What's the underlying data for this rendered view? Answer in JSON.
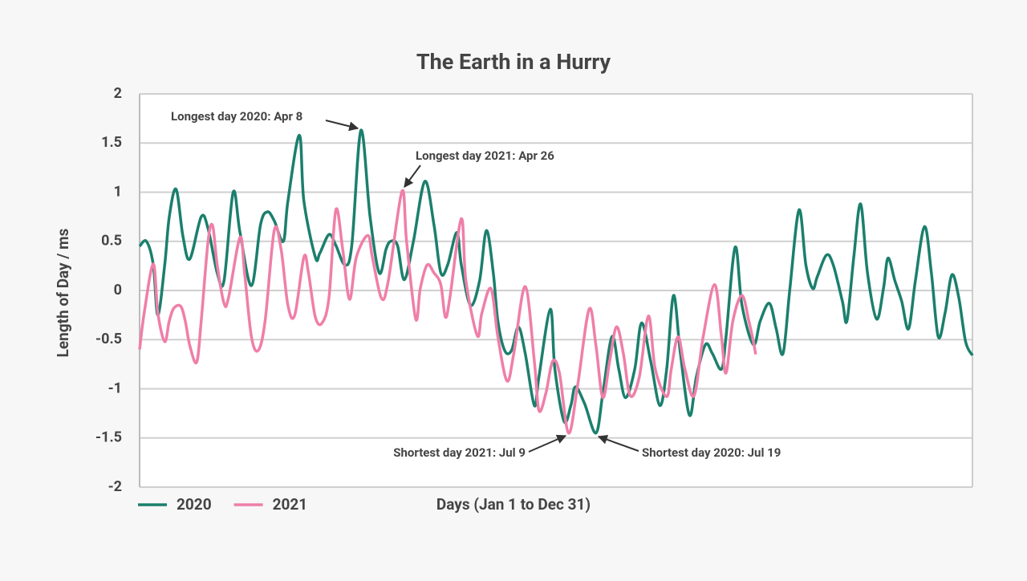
{
  "chart_data": {
    "type": "line",
    "title": "The Earth in a Hurry",
    "x_label": "Days (Jan 1 to Dec 31)",
    "y_label": "Length of Day / ms",
    "xlim": [
      1,
      366
    ],
    "ylim": [
      -2,
      2
    ],
    "yticks": [
      2,
      1.5,
      1,
      0.5,
      0,
      -0.5,
      -1,
      -1.5,
      -2
    ],
    "grid": true,
    "annotations": [
      "Longest day 2020: Apr 8",
      "Longest day 2021: Apr 26",
      "Shortest day 2021: Jul 9",
      "Shortest day 2020: Jul 19"
    ],
    "series": [
      {
        "name": "2020",
        "color": "#1b7f6d",
        "x": [
          1,
          4,
          7,
          9,
          12,
          14,
          17,
          20,
          23,
          28,
          31,
          35,
          38,
          42,
          45,
          50,
          54,
          57,
          60,
          64,
          66,
          71,
          73,
          78,
          80,
          84,
          87,
          91,
          94,
          98,
          102,
          106,
          109,
          111,
          114,
          117,
          121,
          126,
          130,
          133,
          136,
          140,
          142,
          146,
          150,
          153,
          156,
          158,
          161,
          164,
          167,
          170,
          174,
          176,
          181,
          183,
          187,
          190,
          192,
          196,
          201,
          204,
          208,
          211,
          214,
          218,
          221,
          225,
          229,
          232,
          235,
          238,
          242,
          245,
          249,
          252,
          256,
          258,
          262,
          265,
          270,
          273,
          277,
          280,
          283,
          286,
          290,
          293,
          296,
          298,
          302,
          305,
          309,
          311,
          314,
          317,
          320,
          324,
          327,
          329,
          332,
          335,
          338,
          341,
          345,
          348,
          351,
          354,
          357,
          360,
          363,
          366
        ],
        "values": [
          0.45,
          0.5,
          0.26,
          -0.25,
          0.26,
          0.75,
          1.03,
          0.55,
          0.32,
          0.75,
          0.63,
          0.18,
          0.1,
          1.0,
          0.59,
          0.05,
          0.67,
          0.8,
          0.71,
          0.5,
          0.91,
          1.58,
          0.91,
          0.34,
          0.38,
          0.57,
          0.46,
          0.26,
          0.46,
          1.63,
          0.75,
          0.18,
          0.42,
          0.5,
          0.46,
          0.11,
          0.5,
          1.11,
          0.67,
          0.18,
          0.26,
          0.59,
          0.26,
          -0.15,
          0.1,
          0.61,
          0.18,
          -0.31,
          -0.61,
          -0.61,
          -0.37,
          -0.64,
          -1.17,
          -0.88,
          -0.19,
          -0.8,
          -1.33,
          -1.17,
          -0.98,
          -1.15,
          -1.45,
          -1.05,
          -0.47,
          -0.8,
          -1.09,
          -0.8,
          -0.33,
          -0.72,
          -1.17,
          -0.8,
          -0.05,
          -0.64,
          -1.27,
          -0.88,
          -0.55,
          -0.64,
          -0.8,
          -0.47,
          0.44,
          -0.15,
          -0.55,
          -0.31,
          -0.13,
          -0.39,
          -0.64,
          0.02,
          0.82,
          0.26,
          0.02,
          0.14,
          0.36,
          0.26,
          -0.11,
          -0.31,
          0.34,
          0.88,
          0.18,
          -0.29,
          0.02,
          0.33,
          0.1,
          -0.11,
          -0.39,
          0.1,
          0.65,
          0.18,
          -0.47,
          -0.23,
          0.16,
          -0.07,
          -0.52,
          -0.66
        ]
      },
      {
        "name": "2021",
        "color": "#ef7fa8",
        "x": [
          1,
          3,
          7,
          9,
          12,
          14,
          16,
          19,
          21,
          23,
          26,
          28,
          31,
          33,
          35,
          38,
          40,
          45,
          47,
          50,
          53,
          56,
          60,
          63,
          66,
          69,
          73,
          75,
          78,
          81,
          84,
          87,
          90,
          93,
          96,
          101,
          103,
          107,
          110,
          116,
          118,
          122,
          124,
          127,
          130,
          133,
          135,
          137,
          142,
          144,
          149,
          151,
          155,
          158,
          162,
          165,
          170,
          174,
          176,
          179,
          182,
          185,
          189,
          193,
          198,
          201,
          204,
          207,
          210,
          213,
          216,
          220,
          224,
          227,
          232,
          234,
          237,
          240,
          244,
          248,
          253,
          256,
          258,
          261,
          265,
          268,
          270,
          271
        ],
        "values": [
          -0.6,
          -0.23,
          0.27,
          -0.23,
          -0.52,
          -0.31,
          -0.18,
          -0.16,
          -0.31,
          -0.56,
          -0.73,
          -0.31,
          0.5,
          0.66,
          0.26,
          -0.13,
          -0.07,
          0.54,
          0.18,
          -0.47,
          -0.61,
          -0.31,
          0.61,
          0.42,
          -0.15,
          -0.25,
          0.34,
          0.18,
          -0.27,
          -0.33,
          -0.07,
          0.82,
          0.42,
          -0.09,
          0.34,
          0.56,
          0.34,
          -0.08,
          0.1,
          1.01,
          0.5,
          -0.29,
          0.02,
          0.26,
          0.18,
          0.06,
          -0.27,
          -0.07,
          0.73,
          0.1,
          -0.46,
          -0.23,
          0.02,
          -0.47,
          -0.92,
          -0.64,
          0.04,
          -0.72,
          -1.22,
          -1.05,
          -0.72,
          -0.84,
          -1.45,
          -0.96,
          -0.19,
          -0.56,
          -1.09,
          -0.72,
          -0.37,
          -0.64,
          -1.07,
          -0.88,
          -0.26,
          -0.8,
          -1.08,
          -0.8,
          -0.47,
          -0.8,
          -1.07,
          -0.47,
          0.06,
          -0.47,
          -0.84,
          -0.31,
          -0.05,
          -0.31,
          -0.52,
          -0.65
        ]
      }
    ]
  }
}
